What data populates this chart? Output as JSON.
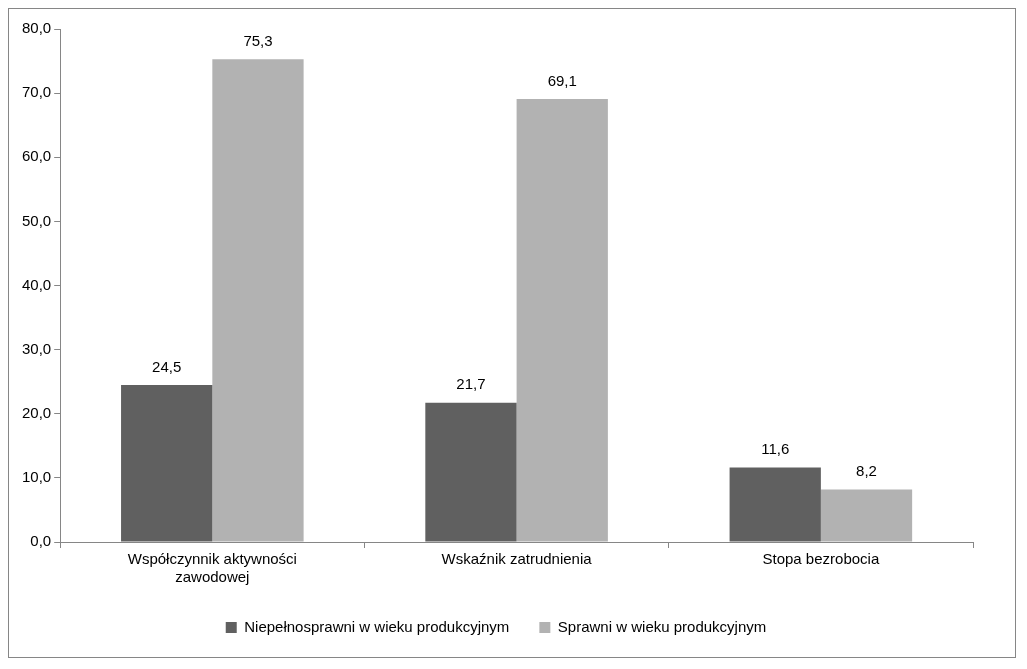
{
  "chart_data": {
    "type": "bar",
    "categories": [
      "Współczynnik aktywności zawodowej",
      "Wskaźnik zatrudnienia",
      "Stopa bezrobocia"
    ],
    "series": [
      {
        "name": "Niepełnosprawni w wieku produkcyjnym",
        "color": "#606060",
        "values": [
          24.5,
          21.7,
          11.6
        ],
        "value_labels": [
          "24,5",
          "21,7",
          "11,6"
        ]
      },
      {
        "name": "Sprawni w wieku produkcyjnym",
        "color": "#b2b2b2",
        "values": [
          75.3,
          69.1,
          8.2
        ],
        "value_labels": [
          "75,3",
          "69,1",
          "8,2"
        ]
      }
    ],
    "ylim": [
      0,
      80
    ],
    "yticks": [
      {
        "value": 0,
        "label": "0,0"
      },
      {
        "value": 10,
        "label": "10,0"
      },
      {
        "value": 20,
        "label": "20,0"
      },
      {
        "value": 30,
        "label": "30,0"
      },
      {
        "value": 40,
        "label": "40,0"
      },
      {
        "value": 50,
        "label": "50,0"
      },
      {
        "value": 60,
        "label": "60,0"
      },
      {
        "value": 70,
        "label": "70,0"
      },
      {
        "value": 80,
        "label": "80,0"
      }
    ],
    "legend": "bottom"
  }
}
